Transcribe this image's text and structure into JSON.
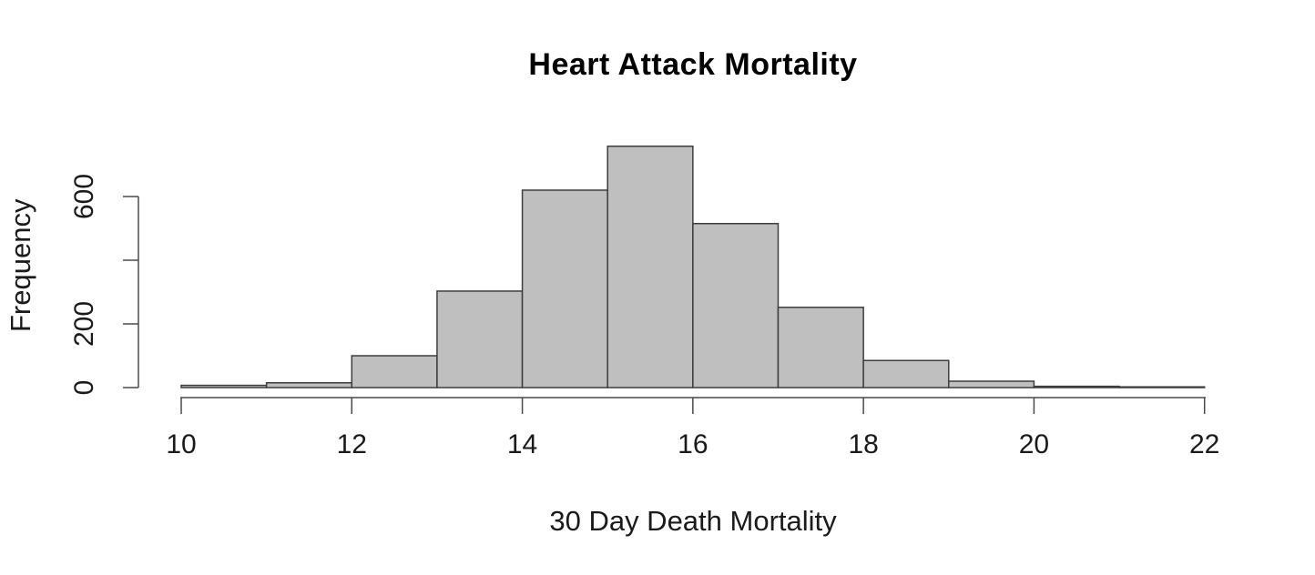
{
  "chart_data": {
    "type": "bar",
    "subtype": "histogram",
    "title": "Heart Attack Mortality",
    "xlabel": "30 Day Death Mortality",
    "ylabel": "Frequency",
    "bin_edges": [
      10,
      11,
      12,
      13,
      14,
      15,
      16,
      17,
      18,
      19,
      20,
      21,
      22
    ],
    "counts": [
      7,
      15,
      100,
      303,
      620,
      758,
      515,
      252,
      85,
      20,
      4,
      2
    ],
    "x_ticks": [
      10,
      12,
      14,
      16,
      18,
      20,
      22
    ],
    "x_tick_labels": [
      "10",
      "12",
      "14",
      "16",
      "18",
      "20",
      "22"
    ],
    "y_ticks": [
      0,
      200,
      400,
      600
    ],
    "y_tick_labels": [
      "0",
      "200",
      "",
      "600"
    ],
    "xlim": [
      10,
      22
    ],
    "ylim": [
      0,
      780
    ],
    "grid": false,
    "legend": "none",
    "colors": {
      "bar_fill": "#bfbfbf",
      "bar_border": "#3d3d3d",
      "axis": "#4a4a4a",
      "text": "#1a1a1a"
    }
  }
}
